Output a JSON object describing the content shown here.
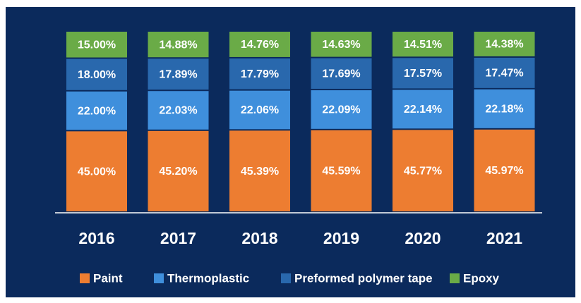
{
  "chart_data": {
    "type": "stacked_bar",
    "categories": [
      "2016",
      "2017",
      "2018",
      "2019",
      "2020",
      "2021"
    ],
    "ylim": [
      0,
      100
    ],
    "series": [
      {
        "name": "Paint",
        "color": "#ed7d31",
        "values": [
          45.0,
          45.2,
          45.39,
          45.59,
          45.77,
          45.97
        ],
        "value_labels": [
          "45.00%",
          "45.20%",
          "45.39%",
          "45.59%",
          "45.77%",
          "45.97%"
        ]
      },
      {
        "name": "Thermoplastic",
        "color": "#3f8fdc",
        "values": [
          22.0,
          22.03,
          22.06,
          22.09,
          22.14,
          22.18
        ],
        "value_labels": [
          "22.00%",
          "22.03%",
          "22.06%",
          "22.09%",
          "22.14%",
          "22.18%"
        ]
      },
      {
        "name": "Preformed polymer tape",
        "color": "#2968ad",
        "values": [
          18.0,
          17.89,
          17.79,
          17.69,
          17.57,
          17.47
        ],
        "value_labels": [
          "18.00%",
          "17.89%",
          "17.79%",
          "17.69%",
          "17.57%",
          "17.47%"
        ]
      },
      {
        "name": "Epoxy",
        "color": "#6aab47",
        "values": [
          15.0,
          14.88,
          14.76,
          14.63,
          14.51,
          14.38
        ],
        "value_labels": [
          "15.00%",
          "14.88%",
          "14.76%",
          "14.63%",
          "14.51%",
          "14.38%"
        ]
      }
    ],
    "legend": "bottom"
  }
}
